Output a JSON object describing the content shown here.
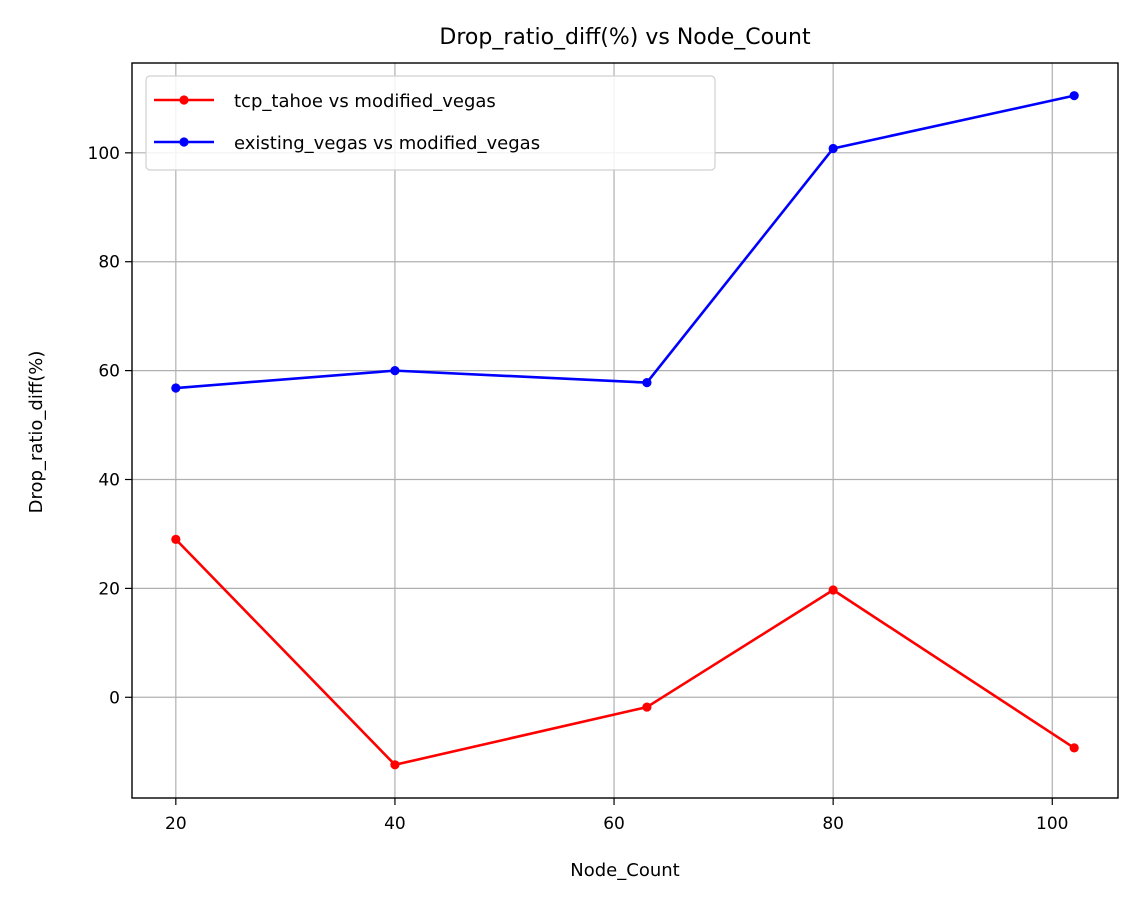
{
  "chart_data": {
    "type": "line",
    "title": "Drop_ratio_diff(%) vs Node_Count",
    "xlabel": "Node_Count",
    "ylabel": "Drop_ratio_diff(%)",
    "x": [
      20,
      40,
      63,
      80,
      102
    ],
    "xlim": [
      16,
      106
    ],
    "ylim": [
      -18.5,
      116.5
    ],
    "xticks": [
      20,
      40,
      60,
      80,
      100
    ],
    "yticks": [
      0,
      20,
      40,
      60,
      80,
      100
    ],
    "grid": true,
    "legend_position": "top-left",
    "series": [
      {
        "name": "tcp_tahoe vs modified_vegas",
        "color": "#ff0000",
        "values": [
          29,
          -12.4,
          -1.8,
          19.7,
          -9.3
        ]
      },
      {
        "name": "existing_vegas vs modified_vegas",
        "color": "#0000ff",
        "values": [
          56.8,
          60.0,
          57.8,
          100.8,
          110.5
        ]
      }
    ]
  }
}
